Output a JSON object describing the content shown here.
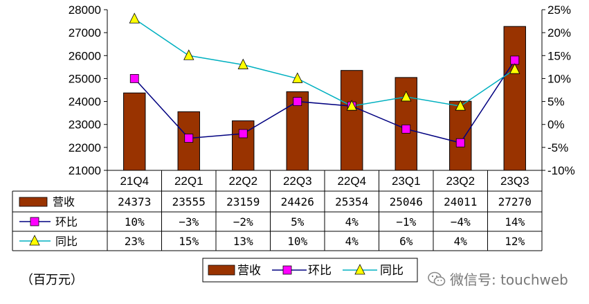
{
  "chart_data": {
    "type": "bar",
    "categories": [
      "21Q4",
      "22Q1",
      "22Q2",
      "22Q3",
      "22Q4",
      "23Q1",
      "23Q2",
      "23Q3"
    ],
    "series": [
      {
        "name": "营收",
        "kind": "bar",
        "axis": "left",
        "color": "#993300",
        "values": [
          24373,
          23555,
          23159,
          24426,
          25354,
          25046,
          24011,
          27270
        ],
        "labels": [
          "24373",
          "23555",
          "23159",
          "24426",
          "25354",
          "25046",
          "24011",
          "27270"
        ]
      },
      {
        "name": "环比",
        "kind": "line",
        "axis": "right",
        "color": "#FF00FF",
        "line_color": "#000080",
        "marker": "square",
        "values": [
          10,
          -3,
          -2,
          5,
          4,
          -1,
          -4,
          14
        ],
        "labels": [
          "10%",
          "−3%",
          "−2%",
          "5%",
          "4%",
          "−1%",
          "−4%",
          "14%"
        ]
      },
      {
        "name": "同比",
        "kind": "line",
        "axis": "right",
        "color": "#FFFF00",
        "line_color": "#00B0C0",
        "marker": "triangle",
        "values": [
          23,
          15,
          13,
          10,
          4,
          6,
          4,
          12
        ],
        "labels": [
          "23%",
          "15%",
          "13%",
          "10%",
          "4%",
          "6%",
          "4%",
          "12%"
        ]
      }
    ],
    "y_left": {
      "ylim": [
        21000,
        28000
      ],
      "ticks": [
        "21000",
        "22000",
        "23000",
        "24000",
        "25000",
        "26000",
        "27000",
        "28000"
      ]
    },
    "y_right": {
      "ylim": [
        -10,
        25
      ],
      "ticks": [
        "-10%",
        "-5%",
        "0%",
        "5%",
        "10%",
        "15%",
        "20%",
        "25%"
      ]
    },
    "grid": false,
    "data_table": true,
    "legend": {
      "position": "bottom",
      "items": [
        "营收",
        "环比",
        "同比"
      ]
    }
  },
  "unit_label": "（百万元）",
  "watermark": "微信号: touchweb"
}
